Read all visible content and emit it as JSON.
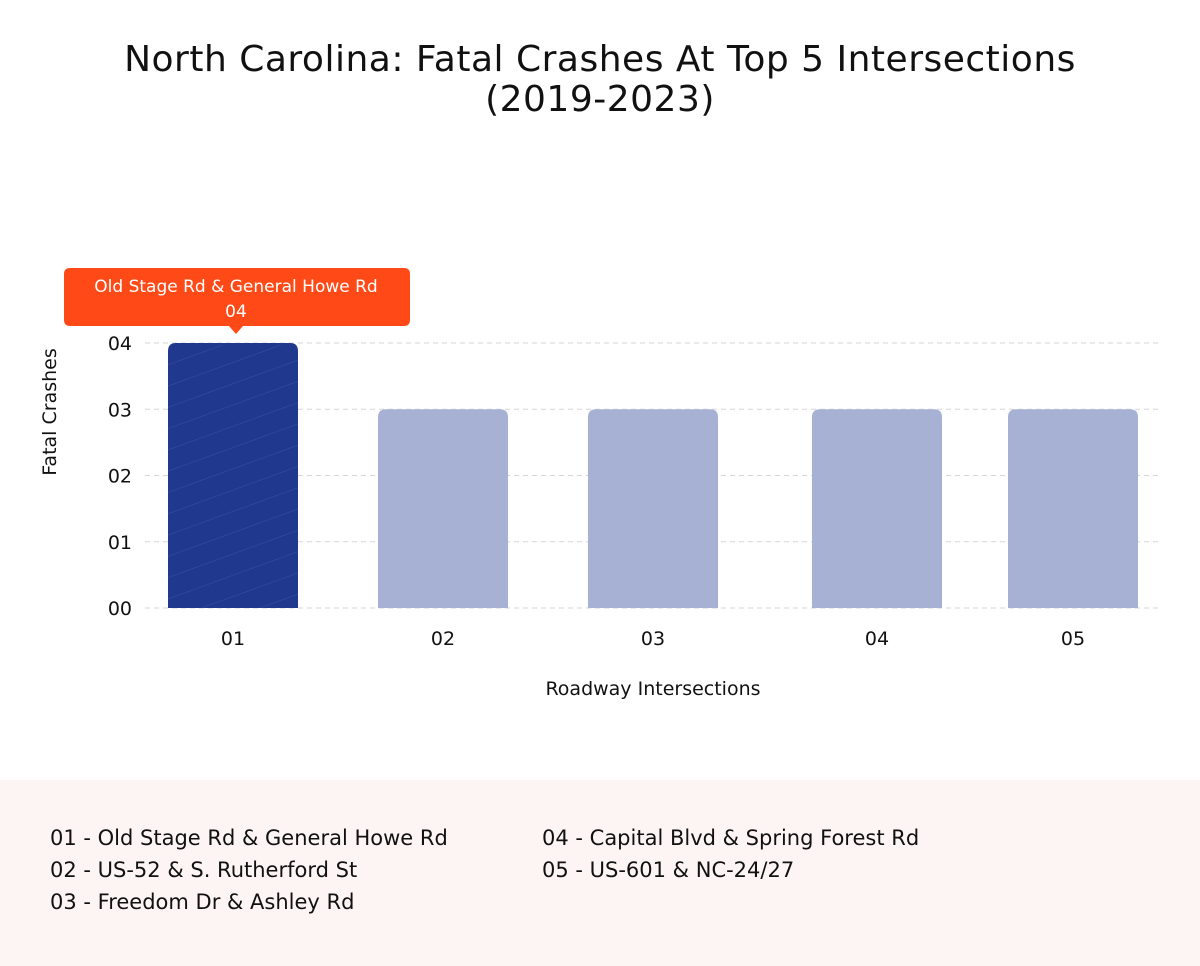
{
  "chart_data": {
    "type": "bar",
    "title": "North Carolina: Fatal Crashes At Top 5 Intersections (2019-2023)",
    "title_lines": [
      "North Carolina: Fatal Crashes At Top 5 Intersections",
      "(2019-2023)"
    ],
    "xlabel": "Roadway Intersections",
    "ylabel": "Fatal Crashes",
    "categories": [
      "01",
      "02",
      "03",
      "04",
      "05"
    ],
    "values": [
      4,
      3,
      3,
      3,
      3
    ],
    "ylim": [
      0,
      4
    ],
    "yticks": [
      "00",
      "01",
      "02",
      "03",
      "04"
    ],
    "grid": true,
    "colors": {
      "highlight": "#21388f",
      "bar": "#a7b1d4",
      "tooltip": "#ff4a17"
    },
    "tooltip": {
      "label": "Old Stage Rd & General Howe Rd",
      "value": "04"
    },
    "legend": [
      "01 - Old Stage Rd & General Howe Rd",
      "02 - US-52 & S. Rutherford St",
      "03 - Freedom Dr & Ashley Rd",
      "04 - Capital Blvd & Spring Forest Rd",
      "05 - US-601 & NC-24/27"
    ]
  }
}
